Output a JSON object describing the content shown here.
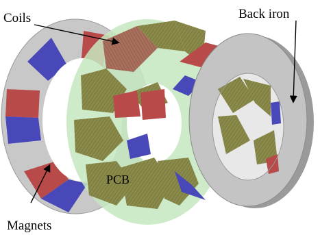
{
  "labels": {
    "coils": "Coils",
    "back_iron": "Back iron",
    "pcb": "PCB",
    "magnets": "Magnets"
  },
  "colors": {
    "magnet_red": "#b84a4a",
    "magnet_blue": "#4848b8",
    "magnet_gap_gray": "#c8c8c8",
    "coil_olive": "#8a8a4a",
    "coil_rose": "#a86a5a",
    "pcb_green": "#c6e8c0",
    "back_iron_gray": "#c4c4c4"
  },
  "icons": [
    "arrow-coils",
    "arrow-back-iron",
    "arrow-magnets"
  ]
}
